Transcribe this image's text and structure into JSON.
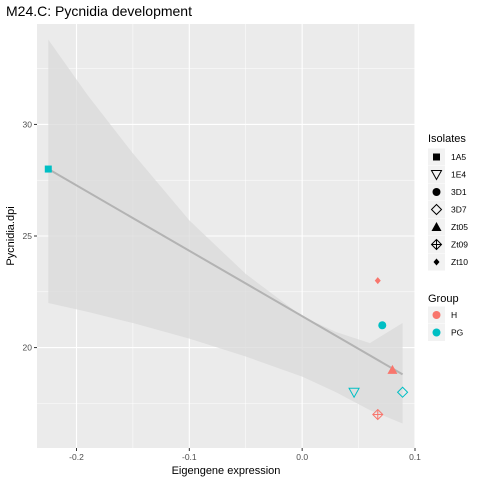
{
  "chart_data": {
    "type": "scatter",
    "title": "M24.C: Pycnidia development",
    "xlabel": "Eigengene expression",
    "ylabel": "Pycnidia.dpi",
    "xlim": [
      -0.235,
      0.1
    ],
    "ylim": [
      15.5,
      34.5
    ],
    "x_ticks": [
      -0.2,
      -0.1,
      0.0,
      0.1
    ],
    "x_tick_labels": [
      "-0.2",
      "-0.1",
      "0.0",
      "0.1"
    ],
    "y_ticks": [
      20,
      25,
      30
    ],
    "y_tick_labels": [
      "20",
      "25",
      "30"
    ],
    "grid": true,
    "legend_position": "right",
    "colors": {
      "H": "#F8766D",
      "PG": "#00BFC4",
      "fit_line": "#b3b3b3",
      "ribbon": "#d9d9d9",
      "panel": "#ebebeb"
    },
    "points": [
      {
        "x": -0.225,
        "y": 28.0,
        "isolate": "1A5",
        "group": "PG"
      },
      {
        "x": 0.046,
        "y": 18.0,
        "isolate": "1E4",
        "group": "PG"
      },
      {
        "x": 0.071,
        "y": 21.0,
        "isolate": "3D1",
        "group": "PG"
      },
      {
        "x": 0.089,
        "y": 18.0,
        "isolate": "3D7",
        "group": "PG"
      },
      {
        "x": 0.08,
        "y": 19.0,
        "isolate": "Zt05",
        "group": "H"
      },
      {
        "x": 0.067,
        "y": 17.0,
        "isolate": "Zt09",
        "group": "H"
      },
      {
        "x": 0.067,
        "y": 23.0,
        "isolate": "Zt10",
        "group": "H"
      }
    ],
    "fit": {
      "line": [
        [
          -0.225,
          28.0
        ],
        [
          0.089,
          18.8
        ]
      ],
      "ribbon": [
        [
          -0.225,
          22.0,
          33.8
        ],
        [
          -0.19,
          21.6,
          31.3
        ],
        [
          -0.15,
          21.1,
          28.7
        ],
        [
          -0.1,
          20.4,
          25.7
        ],
        [
          -0.05,
          19.6,
          23.3
        ],
        [
          0.0,
          18.7,
          21.4
        ],
        [
          0.03,
          18.0,
          20.7
        ],
        [
          0.06,
          17.2,
          20.2
        ],
        [
          0.089,
          16.6,
          21.1
        ]
      ]
    }
  },
  "legend": {
    "isolates": {
      "title": "Isolates",
      "items": [
        {
          "label": "1A5",
          "shape": "square"
        },
        {
          "label": "1E4",
          "shape": "triangle-down-open"
        },
        {
          "label": "3D1",
          "shape": "circle"
        },
        {
          "label": "3D7",
          "shape": "diamond-open"
        },
        {
          "label": "Zt05",
          "shape": "triangle"
        },
        {
          "label": "Zt09",
          "shape": "diamond-plus"
        },
        {
          "label": "Zt10",
          "shape": "diamond-small"
        }
      ]
    },
    "group": {
      "title": "Group",
      "items": [
        {
          "label": "H",
          "color": "#F8766D"
        },
        {
          "label": "PG",
          "color": "#00BFC4"
        }
      ]
    }
  }
}
